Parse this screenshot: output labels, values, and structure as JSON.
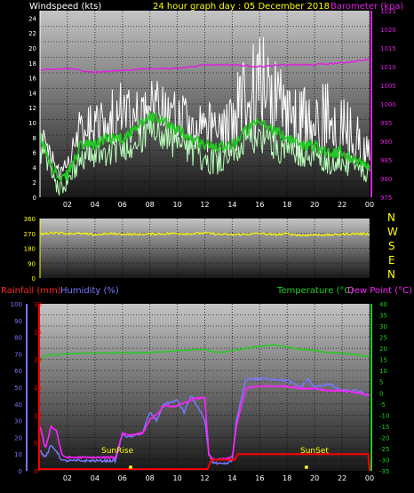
{
  "colors": {
    "windspeed": "#ffffff",
    "wind_avg": "#22cc22",
    "wind_light": "#b8ffb8",
    "barometer": "#dd22dd",
    "direction": "#ffff00",
    "rainfall": "#ff0000",
    "humidity": "#7777ff",
    "temperature": "#22cc22",
    "dewpoint": "#ff22ff",
    "title": "#ffff00",
    "compass": "#ffff00",
    "axis_white": "#ffffff",
    "axis_yellow": "#ffff00"
  },
  "chart_data": [
    {
      "type": "line",
      "title": "24 hour graph day : 05 December 2018",
      "ylabel": "Windspeed (kts)",
      "ylabel_right": "Barometer (kpa)",
      "x_ticks": [
        "02",
        "04",
        "06",
        "08",
        "10",
        "12",
        "14",
        "16",
        "18",
        "20",
        "22",
        "00"
      ],
      "ylim": [
        0,
        25
      ],
      "y_ticks": [
        "0",
        "2",
        "4",
        "6",
        "8",
        "10",
        "12",
        "14",
        "16",
        "18",
        "20",
        "22",
        "24"
      ],
      "y2lim": [
        975,
        1025
      ],
      "y2_ticks": [
        "975",
        "980",
        "985",
        "990",
        "995",
        "1000",
        "1005",
        "1010",
        "1015",
        "1020",
        "1025"
      ],
      "series": [
        {
          "role": "gust",
          "hours": [
            0,
            0.5,
            1,
            1.5,
            2,
            3,
            4,
            5,
            6,
            7,
            8,
            9,
            10,
            11,
            12,
            13,
            14,
            15,
            16,
            17,
            18,
            19,
            20,
            21,
            22,
            23,
            24
          ],
          "values": [
            10,
            8,
            6,
            4,
            6,
            12,
            13,
            14,
            15,
            15,
            16,
            15,
            15,
            13,
            12,
            12,
            15,
            19,
            22,
            20,
            17,
            16,
            15,
            15,
            14,
            12,
            8
          ]
        },
        {
          "role": "average",
          "hours": [
            0,
            0.5,
            1,
            1.5,
            2,
            3,
            4,
            5,
            6,
            7,
            8,
            9,
            10,
            11,
            12,
            13,
            14,
            15,
            16,
            17,
            18,
            19,
            20,
            21,
            22,
            23,
            24
          ],
          "values": [
            8,
            6,
            4,
            2,
            3,
            7,
            7,
            8,
            8,
            9,
            11,
            10,
            9,
            8,
            7,
            7,
            7,
            9,
            10,
            9,
            8,
            7,
            7,
            6,
            6,
            5,
            4
          ]
        },
        {
          "role": "minimum",
          "hours": [
            0,
            0.5,
            1,
            1.5,
            2,
            3,
            4,
            5,
            6,
            7,
            8,
            9,
            10,
            11,
            12,
            13,
            14,
            15,
            16,
            17,
            18,
            19,
            20,
            21,
            22,
            23,
            24
          ],
          "values": [
            4,
            2,
            1,
            0,
            1,
            3,
            4,
            4,
            5,
            5,
            6,
            6,
            5,
            4,
            3,
            3,
            4,
            5,
            6,
            5,
            4,
            4,
            4,
            3,
            3,
            2,
            2
          ]
        },
        {
          "role": "barometer",
          "hours": [
            0,
            2,
            4,
            6,
            8,
            10,
            12,
            14,
            16,
            18,
            20,
            22,
            24
          ],
          "values": [
            1009,
            1009.5,
            1008.5,
            1009,
            1009.5,
            1009.5,
            1010.5,
            1010.5,
            1010,
            1010.5,
            1010.5,
            1011,
            1012
          ]
        }
      ]
    },
    {
      "type": "line",
      "x_ticks": [
        "02",
        "04",
        "06",
        "08",
        "10",
        "12",
        "14",
        "16",
        "18",
        "20",
        "22",
        "00"
      ],
      "ylim": [
        0,
        360
      ],
      "y_ticks": [
        "0",
        "90",
        "180",
        "270",
        "360"
      ],
      "compass": [
        "N",
        "W",
        "S",
        "E",
        "N"
      ],
      "series": [
        {
          "role": "direction",
          "hours": [
            0,
            1,
            2,
            3,
            4,
            5,
            6,
            7,
            8,
            9,
            10,
            11,
            12,
            13,
            14,
            15,
            16,
            17,
            18,
            19,
            20,
            21,
            22,
            23,
            24
          ],
          "values": [
            265,
            275,
            270,
            268,
            262,
            268,
            266,
            264,
            266,
            268,
            270,
            268,
            272,
            265,
            262,
            265,
            270,
            262,
            268,
            258,
            262,
            260,
            265,
            268,
            266
          ]
        }
      ]
    },
    {
      "type": "line",
      "ylabel_left1": "Rainfall (mm)",
      "ylabel_left2": "Humidity (%)",
      "ylabel_right1": "Temperature (°C)",
      "ylabel_right2": "Dew Point (°C)",
      "x_ticks": [
        "02",
        "04",
        "06",
        "08",
        "10",
        "12",
        "14",
        "16",
        "18",
        "20",
        "22",
        "00"
      ],
      "humidity_lim": [
        0,
        100
      ],
      "humidity_ticks": [
        "0",
        "10",
        "20",
        "30",
        "40",
        "50",
        "60",
        "70",
        "80",
        "90",
        "100"
      ],
      "rain_lim": [
        0,
        30
      ],
      "rain_ticks": [
        "0",
        "5",
        "10",
        "15",
        "20",
        "25",
        "30"
      ],
      "temp_lim": [
        -35,
        40
      ],
      "temp_ticks": [
        "-35",
        "-30",
        "-25",
        "-20",
        "-15",
        "-10",
        "-5",
        "0",
        "5",
        "10",
        "15",
        "20",
        "25",
        "30",
        "35",
        "40"
      ],
      "annotations": [
        "SunRise",
        "SunSet"
      ],
      "series": [
        {
          "role": "rainfall",
          "hours": [
            0,
            12.2,
            12.5,
            14.2,
            14.4,
            23.9,
            24
          ],
          "values": [
            0.3,
            0.3,
            2,
            2,
            3,
            3,
            0
          ]
        },
        {
          "role": "humidity",
          "hours": [
            0,
            0.4,
            0.8,
            1.2,
            1.6,
            2,
            4,
            5.5,
            6,
            6.5,
            7.5,
            8,
            8.5,
            9,
            10,
            10.5,
            11,
            11.5,
            12,
            12.3,
            12.6,
            13,
            13.5,
            14,
            14.3,
            15,
            16,
            17,
            18,
            19,
            19.5,
            20,
            21,
            22,
            23,
            24
          ],
          "values": [
            12,
            8,
            15,
            12,
            6,
            6,
            6,
            6,
            22,
            20,
            23,
            35,
            30,
            40,
            42,
            35,
            45,
            38,
            30,
            10,
            5,
            4,
            4,
            6,
            30,
            55,
            55,
            55,
            54,
            50,
            55,
            50,
            52,
            48,
            48,
            45
          ]
        },
        {
          "role": "temperature",
          "hours": [
            0,
            0.4,
            1,
            2,
            4,
            6,
            8,
            10,
            12,
            13,
            14,
            15,
            16,
            17,
            18,
            19,
            20,
            21,
            22,
            23,
            24
          ],
          "values": [
            14,
            17,
            17,
            17.5,
            18,
            18,
            18,
            19,
            19.5,
            18,
            19,
            20,
            21,
            21.5,
            20.5,
            19.5,
            19,
            18,
            18,
            17,
            16.5
          ]
        },
        {
          "role": "dewpoint",
          "hours": [
            0,
            0.4,
            0.8,
            1.2,
            1.6,
            2,
            4,
            5.5,
            6,
            6.5,
            7.5,
            8,
            8.5,
            9,
            10,
            11,
            12,
            12.3,
            12.6,
            13,
            14,
            14.3,
            15,
            16,
            17,
            18,
            19,
            20,
            21,
            22,
            23,
            24
          ],
          "values": [
            -15,
            -25,
            -15,
            -17,
            -28,
            -29,
            -29,
            -29,
            -18,
            -19,
            -18,
            -12,
            -10,
            -6,
            -6,
            -3,
            -2,
            -28,
            -30,
            -30,
            -29,
            -15,
            2,
            3,
            3,
            3,
            2,
            2,
            1,
            1,
            0,
            -1
          ]
        }
      ]
    }
  ]
}
